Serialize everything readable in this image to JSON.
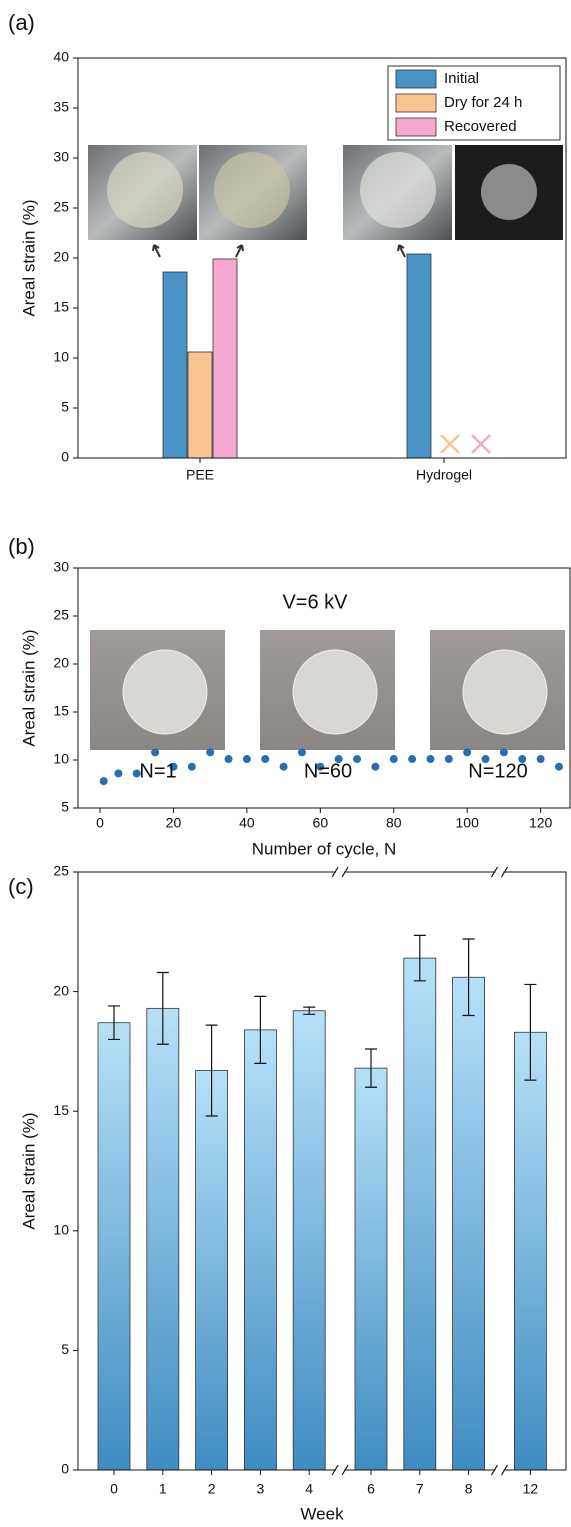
{
  "chart_data": [
    {
      "type": "bar",
      "panel_label": "(a)",
      "categories": [
        "PEE",
        "Hydrogel"
      ],
      "series": [
        {
          "name": "Initial",
          "color": "#4a93c6",
          "values": [
            18.6,
            20.4
          ]
        },
        {
          "name": "Dry for 24 h",
          "color": "#f9c491",
          "values": [
            10.6,
            null
          ]
        },
        {
          "name": "Recovered",
          "color": "#f5a8d0",
          "values": [
            19.9,
            null
          ]
        }
      ],
      "y_label": "Areal strain (%)",
      "ylim": [
        0,
        40
      ],
      "yticks": [
        0,
        5,
        10,
        15,
        20,
        25,
        30,
        35,
        40
      ],
      "legend": "upper right"
    },
    {
      "type": "scatter",
      "panel_label": "(b)",
      "x": [
        1,
        5,
        10,
        15,
        20,
        25,
        30,
        35,
        40,
        45,
        50,
        55,
        60,
        65,
        70,
        75,
        80,
        85,
        90,
        95,
        100,
        105,
        110,
        115,
        120,
        125
      ],
      "values": [
        7.8,
        8.6,
        8.6,
        10.8,
        9.3,
        9.3,
        10.8,
        10.1,
        10.1,
        10.1,
        9.3,
        10.8,
        9.3,
        10.1,
        10.1,
        9.3,
        10.1,
        10.1,
        10.1,
        10.1,
        10.8,
        10.1,
        10.8,
        10.1,
        10.1,
        9.3
      ],
      "color": "#2a6db0",
      "x_label": "Number of cycle, N",
      "y_label": "Areal strain (%)",
      "xlim": [
        -6,
        128
      ],
      "xticks": [
        0,
        20,
        40,
        60,
        80,
        100,
        120
      ],
      "ylim": [
        5,
        30
      ],
      "yticks": [
        5,
        10,
        15,
        20,
        25,
        30
      ],
      "annotations": [
        "V=6 kV",
        "N=1",
        "N=60",
        "N=120"
      ]
    },
    {
      "type": "bar_error",
      "panel_label": "(c)",
      "categories": [
        "0",
        "1",
        "2",
        "3",
        "4",
        "6",
        "7",
        "8",
        "12"
      ],
      "values": [
        18.7,
        19.3,
        16.7,
        18.4,
        19.2,
        16.8,
        21.4,
        20.6,
        18.3
      ],
      "errors": [
        0.7,
        1.5,
        1.9,
        1.4,
        0.15,
        0.8,
        0.95,
        1.6,
        2.0
      ],
      "color": "#3f8cc2",
      "x_label": "Week",
      "y_label": "Areal strain (%)",
      "ylim": [
        0,
        25
      ],
      "yticks": [
        0,
        5,
        10,
        15,
        20,
        25
      ]
    }
  ]
}
